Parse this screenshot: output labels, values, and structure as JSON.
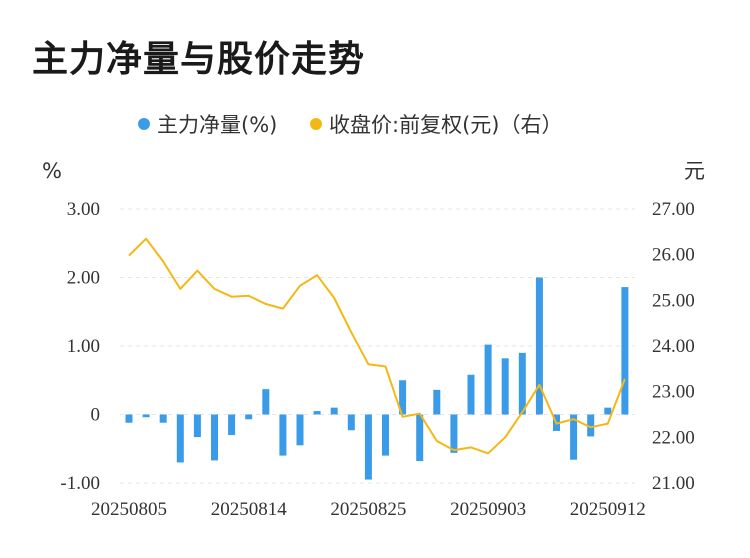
{
  "title": "主力净量与股价走势",
  "chart_data": {
    "type": "bar+line",
    "legend": [
      {
        "label": "主力净量(%)",
        "color": "#3a9be8"
      },
      {
        "label": "收盘价:前复权(元)（右）",
        "color": "#f5b714"
      }
    ],
    "left_unit": "%",
    "right_unit": "元",
    "left_ticks": [
      "3.00",
      "2.00",
      "1.00",
      "0",
      "-1.00"
    ],
    "right_ticks": [
      "27.00",
      "26.00",
      "25.00",
      "24.00",
      "23.00",
      "22.00",
      "21.00"
    ],
    "x_labels": [
      "20250805",
      "20250814",
      "20250825",
      "20250903",
      "20250912"
    ],
    "x_label_index": [
      0,
      7,
      14,
      21,
      28
    ],
    "ylim_left": [
      -1.0,
      3.0
    ],
    "ylim_right": [
      21.0,
      27.0
    ],
    "grid": true,
    "series": [
      {
        "name": "主力净量(%)",
        "type": "bar",
        "values": [
          -0.12,
          -0.04,
          -0.12,
          -0.7,
          -0.33,
          -0.67,
          -0.3,
          -0.07,
          0.37,
          -0.6,
          -0.45,
          0.05,
          0.1,
          -0.23,
          -0.95,
          -0.6,
          0.5,
          -0.68,
          0.36,
          -0.56,
          0.58,
          1.02,
          0.82,
          0.9,
          2.0,
          -0.24,
          -0.66,
          -0.32,
          0.1,
          1.86
        ]
      },
      {
        "name": "收盘价:前复权(元)（右）",
        "type": "line",
        "values": [
          25.98,
          26.35,
          25.85,
          25.25,
          25.65,
          25.25,
          25.08,
          25.1,
          24.92,
          24.82,
          25.32,
          25.55,
          25.05,
          24.3,
          23.6,
          23.55,
          22.45,
          22.52,
          21.92,
          21.72,
          21.78,
          21.65,
          22.0,
          22.55,
          23.15,
          22.3,
          22.4,
          22.22,
          22.3,
          23.28
        ]
      }
    ]
  }
}
